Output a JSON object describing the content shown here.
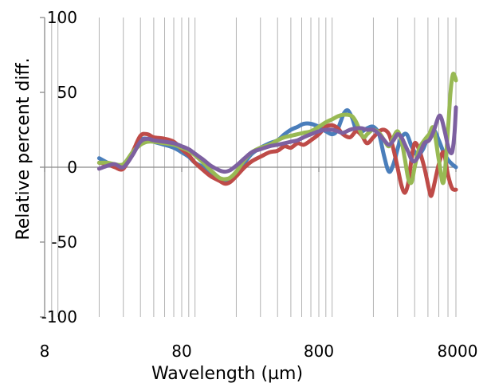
{
  "chart_data": {
    "type": "line",
    "title": "",
    "xlabel": "Wavelength (µm)",
    "ylabel": "Relative percent diff.",
    "x_scale": "log",
    "xlim": [
      8,
      8000
    ],
    "ylim": [
      -100,
      100
    ],
    "x_ticks": [
      8,
      80,
      800,
      8000
    ],
    "x_tick_labels": [
      "8",
      "80",
      "800",
      "8000"
    ],
    "y_ticks": [
      100,
      50,
      0,
      -50,
      -100
    ],
    "y_tick_labels": [
      "100",
      "50",
      "0",
      "-50",
      "-100"
    ],
    "grid": {
      "vertical": true,
      "horizontal": false
    },
    "legend": "none",
    "series": [
      {
        "color": "#4a7ebb",
        "points": [
          [
            20,
            6
          ],
          [
            23,
            3
          ],
          [
            26,
            1
          ],
          [
            30,
            0
          ],
          [
            35,
            10
          ],
          [
            40,
            18
          ],
          [
            45,
            19
          ],
          [
            50,
            17
          ],
          [
            60,
            15
          ],
          [
            70,
            13
          ],
          [
            80,
            10
          ],
          [
            90,
            7
          ],
          [
            100,
            3
          ],
          [
            115,
            0
          ],
          [
            130,
            -4
          ],
          [
            150,
            -8
          ],
          [
            165,
            -10
          ],
          [
            180,
            -9
          ],
          [
            200,
            -5
          ],
          [
            230,
            3
          ],
          [
            260,
            9
          ],
          [
            300,
            13
          ],
          [
            350,
            16
          ],
          [
            400,
            18
          ],
          [
            450,
            22
          ],
          [
            500,
            25
          ],
          [
            560,
            27
          ],
          [
            620,
            29
          ],
          [
            700,
            29
          ],
          [
            800,
            27
          ],
          [
            900,
            24
          ],
          [
            1000,
            22
          ],
          [
            1080,
            24
          ],
          [
            1150,
            30
          ],
          [
            1220,
            36
          ],
          [
            1300,
            38
          ],
          [
            1400,
            33
          ],
          [
            1500,
            25
          ],
          [
            1650,
            24
          ],
          [
            1800,
            26
          ],
          [
            2000,
            27
          ],
          [
            2200,
            22
          ],
          [
            2400,
            7
          ],
          [
            2600,
            -3
          ],
          [
            2800,
            2
          ],
          [
            3000,
            12
          ],
          [
            3200,
            20
          ],
          [
            3500,
            22
          ],
          [
            3800,
            14
          ],
          [
            4200,
            8
          ],
          [
            4600,
            12
          ],
          [
            5000,
            20
          ],
          [
            5500,
            25
          ],
          [
            6000,
            18
          ],
          [
            6500,
            10
          ],
          [
            7000,
            5
          ],
          [
            7500,
            2
          ],
          [
            8000,
            0
          ]
        ]
      },
      {
        "color": "#be4b48",
        "points": [
          [
            20,
            3
          ],
          [
            23,
            2
          ],
          [
            26,
            0
          ],
          [
            30,
            -1
          ],
          [
            35,
            10
          ],
          [
            40,
            21
          ],
          [
            45,
            22
          ],
          [
            50,
            20
          ],
          [
            60,
            19
          ],
          [
            70,
            17
          ],
          [
            80,
            12
          ],
          [
            90,
            8
          ],
          [
            100,
            3
          ],
          [
            115,
            -2
          ],
          [
            130,
            -6
          ],
          [
            150,
            -9
          ],
          [
            165,
            -11
          ],
          [
            180,
            -10
          ],
          [
            200,
            -6
          ],
          [
            230,
            0
          ],
          [
            260,
            4
          ],
          [
            300,
            7
          ],
          [
            350,
            10
          ],
          [
            400,
            11
          ],
          [
            450,
            14
          ],
          [
            500,
            13
          ],
          [
            560,
            16
          ],
          [
            620,
            15
          ],
          [
            700,
            18
          ],
          [
            800,
            22
          ],
          [
            900,
            27
          ],
          [
            1000,
            28
          ],
          [
            1100,
            26
          ],
          [
            1200,
            22
          ],
          [
            1350,
            20
          ],
          [
            1500,
            24
          ],
          [
            1650,
            21
          ],
          [
            1800,
            16
          ],
          [
            2000,
            20
          ],
          [
            2200,
            24
          ],
          [
            2400,
            25
          ],
          [
            2600,
            22
          ],
          [
            2800,
            12
          ],
          [
            3000,
            0
          ],
          [
            3200,
            -12
          ],
          [
            3400,
            -17
          ],
          [
            3600,
            -10
          ],
          [
            3800,
            6
          ],
          [
            4000,
            16
          ],
          [
            4300,
            12
          ],
          [
            4700,
            0
          ],
          [
            5100,
            -15
          ],
          [
            5300,
            -19
          ],
          [
            5600,
            -10
          ],
          [
            6000,
            2
          ],
          [
            6500,
            10
          ],
          [
            7000,
            -5
          ],
          [
            7500,
            -14
          ],
          [
            8000,
            -15
          ]
        ]
      },
      {
        "color": "#98b954",
        "points": [
          [
            20,
            3
          ],
          [
            23,
            3
          ],
          [
            26,
            2
          ],
          [
            30,
            2
          ],
          [
            35,
            10
          ],
          [
            40,
            15
          ],
          [
            45,
            17
          ],
          [
            50,
            17
          ],
          [
            60,
            16
          ],
          [
            70,
            15
          ],
          [
            80,
            13
          ],
          [
            90,
            11
          ],
          [
            100,
            8
          ],
          [
            115,
            3
          ],
          [
            130,
            -2
          ],
          [
            150,
            -7
          ],
          [
            165,
            -8
          ],
          [
            180,
            -7
          ],
          [
            200,
            -3
          ],
          [
            230,
            5
          ],
          [
            260,
            10
          ],
          [
            300,
            13
          ],
          [
            350,
            15
          ],
          [
            400,
            18
          ],
          [
            450,
            20
          ],
          [
            500,
            21
          ],
          [
            560,
            22
          ],
          [
            620,
            23
          ],
          [
            700,
            24
          ],
          [
            800,
            27
          ],
          [
            900,
            30
          ],
          [
            1000,
            32
          ],
          [
            1100,
            34
          ],
          [
            1200,
            35
          ],
          [
            1300,
            35
          ],
          [
            1400,
            34
          ],
          [
            1500,
            30
          ],
          [
            1600,
            24
          ],
          [
            1700,
            20
          ],
          [
            1800,
            22
          ],
          [
            1900,
            24
          ],
          [
            2000,
            25
          ],
          [
            2200,
            23
          ],
          [
            2400,
            18
          ],
          [
            2600,
            14
          ],
          [
            2800,
            20
          ],
          [
            3000,
            24
          ],
          [
            3200,
            18
          ],
          [
            3400,
            5
          ],
          [
            3600,
            -8
          ],
          [
            3800,
            -10
          ],
          [
            4000,
            0
          ],
          [
            4300,
            12
          ],
          [
            4700,
            18
          ],
          [
            5100,
            22
          ],
          [
            5500,
            26
          ],
          [
            6000,
            5
          ],
          [
            6500,
            -10
          ],
          [
            7000,
            25
          ],
          [
            7300,
            50
          ],
          [
            7600,
            62
          ],
          [
            7900,
            60
          ],
          [
            8000,
            58
          ]
        ]
      },
      {
        "color": "#7d60a0",
        "points": [
          [
            20,
            -1
          ],
          [
            23,
            1
          ],
          [
            26,
            2
          ],
          [
            30,
            0
          ],
          [
            35,
            8
          ],
          [
            40,
            17
          ],
          [
            45,
            19
          ],
          [
            50,
            18
          ],
          [
            60,
            17
          ],
          [
            70,
            16
          ],
          [
            80,
            14
          ],
          [
            90,
            12
          ],
          [
            100,
            9
          ],
          [
            115,
            5
          ],
          [
            130,
            1
          ],
          [
            150,
            -2
          ],
          [
            165,
            -3
          ],
          [
            180,
            -2
          ],
          [
            200,
            1
          ],
          [
            230,
            6
          ],
          [
            260,
            10
          ],
          [
            300,
            12
          ],
          [
            350,
            14
          ],
          [
            400,
            15
          ],
          [
            450,
            16
          ],
          [
            500,
            17
          ],
          [
            560,
            18
          ],
          [
            620,
            20
          ],
          [
            700,
            22
          ],
          [
            800,
            24
          ],
          [
            900,
            25
          ],
          [
            1000,
            25
          ],
          [
            1100,
            24
          ],
          [
            1200,
            23
          ],
          [
            1350,
            25
          ],
          [
            1500,
            26
          ],
          [
            1650,
            26
          ],
          [
            1800,
            25
          ],
          [
            2000,
            25
          ],
          [
            2200,
            22
          ],
          [
            2400,
            18
          ],
          [
            2600,
            15
          ],
          [
            2800,
            18
          ],
          [
            3000,
            22
          ],
          [
            3200,
            20
          ],
          [
            3400,
            15
          ],
          [
            3600,
            10
          ],
          [
            3800,
            5
          ],
          [
            4000,
            4
          ],
          [
            4300,
            8
          ],
          [
            4700,
            16
          ],
          [
            5100,
            18
          ],
          [
            5500,
            24
          ],
          [
            6000,
            34
          ],
          [
            6300,
            32
          ],
          [
            6700,
            22
          ],
          [
            7100,
            12
          ],
          [
            7500,
            10
          ],
          [
            7800,
            22
          ],
          [
            8000,
            40
          ]
        ]
      }
    ]
  }
}
